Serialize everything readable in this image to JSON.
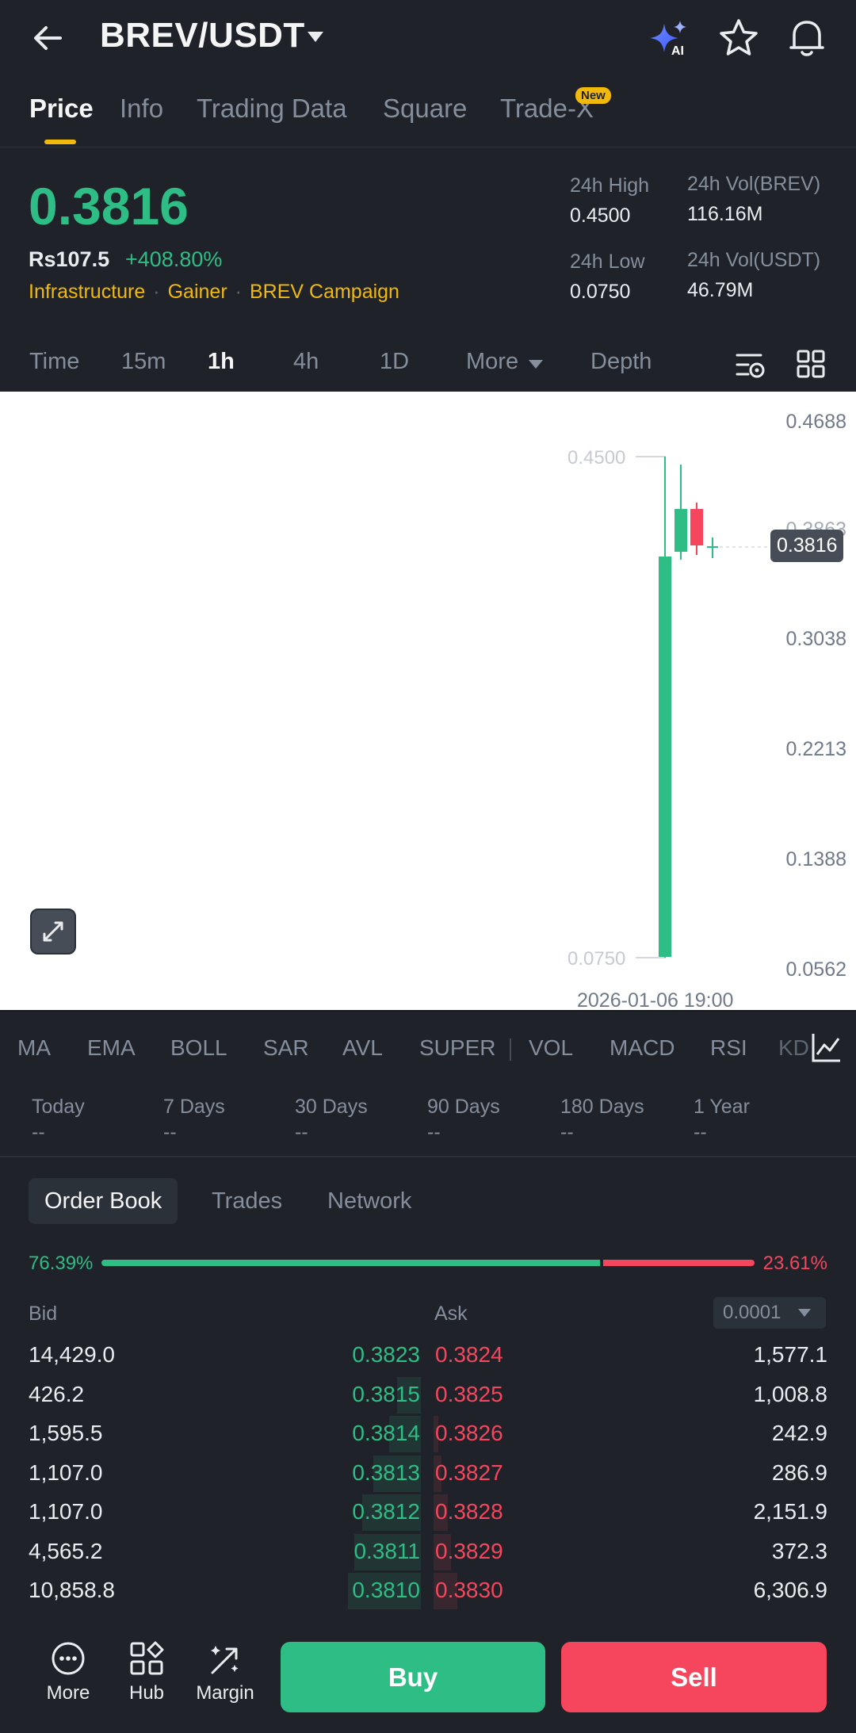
{
  "header": {
    "pair": "BREV/USDT",
    "icons": [
      "back-arrow-icon",
      "caret-down-icon",
      "ai-sparkle-icon",
      "star-icon",
      "bell-icon"
    ]
  },
  "tabs": [
    {
      "label": "Price",
      "active": true
    },
    {
      "label": "Info"
    },
    {
      "label": "Trading Data"
    },
    {
      "label": "Square"
    },
    {
      "label": "Trade-X",
      "badge": "New"
    }
  ],
  "ticker": {
    "last_price": "0.3816",
    "fiat_price": "Rs107.5",
    "change": "+408.80%",
    "tags": [
      "Infrastructure",
      "Gainer",
      "BREV Campaign"
    ],
    "high_label": "24h High",
    "high_value": "0.4500",
    "low_label": "24h Low",
    "low_value": "0.0750",
    "vol_base_label": "24h Vol(BREV)",
    "vol_base_value": "116.16M",
    "vol_quote_label": "24h Vol(USDT)",
    "vol_quote_value": "46.79M"
  },
  "intervals": {
    "items": [
      "Time",
      "15m",
      "1h",
      "4h",
      "1D",
      "More",
      "Depth"
    ],
    "active": "1h"
  },
  "chart": {
    "axis_labels": [
      "0.4688",
      "0.3038",
      "0.2213",
      "0.1388",
      "0.0562"
    ],
    "current_price_tag": "0.3816",
    "high_marker": "0.4500",
    "low_marker": "0.0750",
    "partial_label": "0.3863",
    "date_label": "2026-01-06 19:00",
    "up_color": "#2ebd85",
    "down_color": "#f6465d"
  },
  "indicators": [
    "MA",
    "EMA",
    "BOLL",
    "SAR",
    "AVL",
    "SUPER",
    "VOL",
    "MACD",
    "RSI",
    "KD"
  ],
  "performance": [
    {
      "label": "Today",
      "value": "--"
    },
    {
      "label": "7 Days",
      "value": "--"
    },
    {
      "label": "30 Days",
      "value": "--"
    },
    {
      "label": "90 Days",
      "value": "--"
    },
    {
      "label": "180 Days",
      "value": "--"
    },
    {
      "label": "1 Year",
      "value": "--"
    }
  ],
  "orderbook": {
    "tabs": [
      "Order Book",
      "Trades",
      "Network"
    ],
    "bid_ratio": "76.39%",
    "ask_ratio": "23.61%",
    "bid_fraction": 0.7639,
    "bid_header": "Bid",
    "ask_header": "Ask",
    "precision": "0.0001",
    "rows": [
      {
        "bid_qty": "14,429.0",
        "bid_px": "0.3823",
        "ask_px": "0.3824",
        "ask_qty": "1,577.1"
      },
      {
        "bid_qty": "426.2",
        "bid_px": "0.3815",
        "ask_px": "0.3825",
        "ask_qty": "1,008.8"
      },
      {
        "bid_qty": "1,595.5",
        "bid_px": "0.3814",
        "ask_px": "0.3826",
        "ask_qty": "242.9"
      },
      {
        "bid_qty": "1,107.0",
        "bid_px": "0.3813",
        "ask_px": "0.3827",
        "ask_qty": "286.9"
      },
      {
        "bid_qty": "1,107.0",
        "bid_px": "0.3812",
        "ask_px": "0.3828",
        "ask_qty": "2,151.9"
      },
      {
        "bid_qty": "4,565.2",
        "bid_px": "0.3811",
        "ask_px": "0.3829",
        "ask_qty": "372.3"
      },
      {
        "bid_qty": "10,858.8",
        "bid_px": "0.3810",
        "ask_px": "0.3830",
        "ask_qty": "6,306.9"
      }
    ]
  },
  "bottom": {
    "nav": [
      "More",
      "Hub",
      "Margin"
    ],
    "buy": "Buy",
    "sell": "Sell"
  }
}
